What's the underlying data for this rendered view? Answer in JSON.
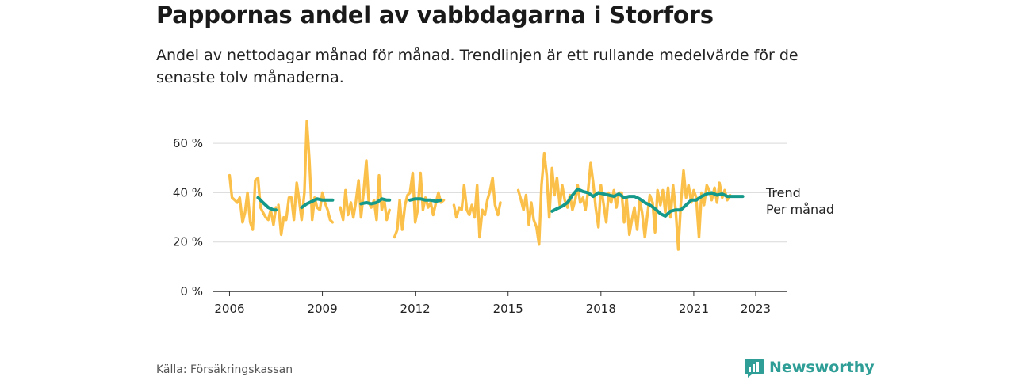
{
  "header": {
    "title": "Pappornas andel av vabbdagarna i Storfors",
    "subtitle": "Andel av nettodagar månad för månad. Trendlinjen är ett rullande medelvärde för de senaste tolv månaderna."
  },
  "footer": {
    "source": "Källa: Försäkringskassan",
    "brand": "Newsworthy",
    "brand_icon": "bar-chart-icon"
  },
  "colors": {
    "monthly": "#fbc04a",
    "trend": "#15998a",
    "grid": "#d9d9d9",
    "axis": "#333333",
    "brand": "#2f9e96"
  },
  "chart_data": {
    "type": "line",
    "x_unit": "year",
    "ylim": [
      0,
      70
    ],
    "y_ticks": [
      0,
      20,
      40,
      60
    ],
    "y_tick_labels": [
      "0 %",
      "20 %",
      "40 %",
      "60 %"
    ],
    "x_ticks": [
      2006,
      2009,
      2012,
      2015,
      2018,
      2021,
      2023
    ],
    "x_tick_labels": [
      "2006",
      "2009",
      "2012",
      "2015",
      "2018",
      "2021",
      "2023"
    ],
    "grid": true,
    "series": [
      {
        "name": "Per månad",
        "values": [
          [
            [
              2006.0,
              47
            ],
            [
              2006.08,
              38
            ],
            [
              2006.17,
              37
            ],
            [
              2006.25,
              36
            ],
            [
              2006.33,
              38
            ],
            [
              2006.42,
              28
            ],
            [
              2006.5,
              32
            ],
            [
              2006.58,
              40
            ],
            [
              2006.67,
              28
            ],
            [
              2006.75,
              25
            ],
            [
              2006.83,
              45
            ],
            [
              2006.92,
              46
            ],
            [
              2007.0,
              34
            ],
            [
              2007.08,
              32
            ],
            [
              2007.17,
              30
            ],
            [
              2007.25,
              29
            ],
            [
              2007.33,
              33
            ],
            [
              2007.42,
              27
            ],
            [
              2007.5,
              34
            ]
          ],
          [
            [
              2007.58,
              35
            ],
            [
              2007.67,
              23
            ],
            [
              2007.75,
              30
            ],
            [
              2007.83,
              29
            ],
            [
              2007.92,
              38
            ],
            [
              2008.0,
              38
            ],
            [
              2008.08,
              29
            ],
            [
              2008.17,
              44
            ],
            [
              2008.25,
              37
            ],
            [
              2008.33,
              29
            ],
            [
              2008.42,
              40
            ],
            [
              2008.5,
              69
            ],
            [
              2008.58,
              53
            ],
            [
              2008.67,
              29
            ],
            [
              2008.75,
              38
            ],
            [
              2008.83,
              34
            ],
            [
              2008.92,
              33
            ],
            [
              2009.0,
              40
            ],
            [
              2009.08,
              36
            ],
            [
              2009.17,
              33
            ],
            [
              2009.25,
              29
            ],
            [
              2009.33,
              28
            ]
          ],
          [
            [
              2009.58,
              34
            ],
            [
              2009.67,
              29
            ],
            [
              2009.75,
              41
            ],
            [
              2009.83,
              31
            ],
            [
              2009.92,
              36
            ],
            [
              2010.0,
              30
            ],
            [
              2010.08,
              36
            ],
            [
              2010.17,
              45
            ],
            [
              2010.25,
              30
            ],
            [
              2010.33,
              40
            ],
            [
              2010.42,
              53
            ],
            [
              2010.5,
              36
            ],
            [
              2010.58,
              34
            ],
            [
              2010.67,
              37
            ],
            [
              2010.75,
              29
            ],
            [
              2010.83,
              47
            ],
            [
              2010.92,
              33
            ],
            [
              2011.0,
              37
            ],
            [
              2011.08,
              29
            ],
            [
              2011.17,
              33
            ]
          ],
          [
            [
              2011.33,
              22
            ],
            [
              2011.42,
              25
            ],
            [
              2011.5,
              37
            ],
            [
              2011.58,
              25
            ],
            [
              2011.67,
              35
            ],
            [
              2011.75,
              39
            ],
            [
              2011.83,
              40
            ],
            [
              2011.92,
              48
            ],
            [
              2012.0,
              28
            ],
            [
              2012.08,
              33
            ],
            [
              2012.17,
              48
            ],
            [
              2012.25,
              33
            ],
            [
              2012.33,
              38
            ],
            [
              2012.42,
              34
            ],
            [
              2012.5,
              36
            ],
            [
              2012.58,
              31
            ],
            [
              2012.67,
              36
            ],
            [
              2012.75,
              40
            ],
            [
              2012.83,
              36
            ],
            [
              2012.92,
              37
            ]
          ],
          [
            [
              2013.25,
              35
            ],
            [
              2013.33,
              30
            ],
            [
              2013.42,
              34
            ],
            [
              2013.5,
              33
            ],
            [
              2013.58,
              43
            ],
            [
              2013.67,
              33
            ],
            [
              2013.75,
              31
            ],
            [
              2013.83,
              35
            ],
            [
              2013.92,
              30
            ],
            [
              2014.0,
              43
            ],
            [
              2014.08,
              22
            ],
            [
              2014.17,
              33
            ],
            [
              2014.25,
              31
            ],
            [
              2014.33,
              37
            ],
            [
              2014.42,
              41
            ],
            [
              2014.5,
              46
            ],
            [
              2014.58,
              35
            ],
            [
              2014.67,
              31
            ],
            [
              2014.75,
              36
            ]
          ],
          [
            [
              2015.33,
              41
            ],
            [
              2015.42,
              37
            ],
            [
              2015.5,
              33
            ],
            [
              2015.58,
              39
            ],
            [
              2015.67,
              27
            ],
            [
              2015.75,
              36
            ],
            [
              2015.83,
              29
            ],
            [
              2015.92,
              26
            ],
            [
              2016.0,
              19
            ],
            [
              2016.08,
              43
            ],
            [
              2016.17,
              56
            ],
            [
              2016.25,
              47
            ],
            [
              2016.33,
              30
            ],
            [
              2016.42,
              50
            ],
            [
              2016.5,
              39
            ],
            [
              2016.58,
              46
            ],
            [
              2016.67,
              35
            ],
            [
              2016.75,
              43
            ],
            [
              2016.83,
              37
            ],
            [
              2016.92,
              34
            ],
            [
              2017.0,
              39
            ],
            [
              2017.08,
              33
            ],
            [
              2017.17,
              37
            ],
            [
              2017.25,
              43
            ],
            [
              2017.33,
              36
            ],
            [
              2017.42,
              38
            ],
            [
              2017.5,
              33
            ],
            [
              2017.58,
              40
            ],
            [
              2017.67,
              52
            ],
            [
              2017.75,
              44
            ],
            [
              2017.83,
              34
            ],
            [
              2017.92,
              26
            ],
            [
              2018.0,
              43
            ],
            [
              2018.08,
              36
            ],
            [
              2018.17,
              28
            ],
            [
              2018.25,
              40
            ],
            [
              2018.33,
              36
            ],
            [
              2018.42,
              41
            ],
            [
              2018.5,
              34
            ],
            [
              2018.58,
              40
            ],
            [
              2018.67,
              40
            ],
            [
              2018.75,
              28
            ],
            [
              2018.83,
              38
            ],
            [
              2018.92,
              23
            ],
            [
              2019.0,
              29
            ],
            [
              2019.08,
              34
            ],
            [
              2019.17,
              25
            ],
            [
              2019.25,
              37
            ],
            [
              2019.33,
              32
            ],
            [
              2019.42,
              22
            ],
            [
              2019.5,
              31
            ],
            [
              2019.58,
              39
            ],
            [
              2019.67,
              36
            ],
            [
              2019.75,
              24
            ],
            [
              2019.83,
              41
            ],
            [
              2019.92,
              35
            ],
            [
              2020.0,
              41
            ],
            [
              2020.08,
              32
            ],
            [
              2020.17,
              42
            ],
            [
              2020.25,
              30
            ],
            [
              2020.33,
              43
            ],
            [
              2020.42,
              32
            ],
            [
              2020.5,
              17
            ],
            [
              2020.58,
              35
            ],
            [
              2020.67,
              49
            ],
            [
              2020.75,
              38
            ],
            [
              2020.83,
              43
            ],
            [
              2020.92,
              36
            ],
            [
              2021.0,
              41
            ],
            [
              2021.08,
              38
            ],
            [
              2021.17,
              22
            ],
            [
              2021.25,
              40
            ],
            [
              2021.33,
              35
            ],
            [
              2021.42,
              43
            ],
            [
              2021.5,
              41
            ],
            [
              2021.58,
              37
            ],
            [
              2021.67,
              42
            ],
            [
              2021.75,
              36
            ],
            [
              2021.83,
              44
            ],
            [
              2021.92,
              38
            ],
            [
              2022.0,
              41
            ],
            [
              2022.08,
              37
            ],
            [
              2022.17,
              39
            ]
          ]
        ]
      },
      {
        "name": "Trend",
        "values": [
          [
            [
              2006.92,
              38
            ],
            [
              2007.08,
              36
            ],
            [
              2007.25,
              34
            ],
            [
              2007.42,
              33
            ],
            [
              2007.5,
              33
            ]
          ],
          [
            [
              2008.33,
              34
            ],
            [
              2008.5,
              35.5
            ],
            [
              2008.67,
              36.5
            ],
            [
              2008.83,
              37.5
            ],
            [
              2009.0,
              37
            ],
            [
              2009.17,
              37
            ],
            [
              2009.33,
              37
            ]
          ],
          [
            [
              2010.25,
              35.5
            ],
            [
              2010.42,
              36
            ],
            [
              2010.58,
              35.5
            ],
            [
              2010.75,
              36
            ],
            [
              2010.92,
              37.5
            ],
            [
              2011.08,
              37
            ],
            [
              2011.17,
              37
            ]
          ],
          [
            [
              2011.83,
              37
            ],
            [
              2012.0,
              37.5
            ],
            [
              2012.17,
              37.5
            ],
            [
              2012.33,
              37
            ],
            [
              2012.5,
              37
            ],
            [
              2012.67,
              36.5
            ],
            [
              2012.83,
              37
            ]
          ],
          [
            [
              2016.42,
              32.5
            ],
            [
              2016.58,
              33.5
            ],
            [
              2016.75,
              34.5
            ],
            [
              2016.92,
              36
            ],
            [
              2017.08,
              39
            ],
            [
              2017.25,
              41.5
            ],
            [
              2017.42,
              40.5
            ],
            [
              2017.58,
              40
            ],
            [
              2017.75,
              38.5
            ],
            [
              2017.92,
              40
            ],
            [
              2018.08,
              39.5
            ],
            [
              2018.25,
              39
            ],
            [
              2018.42,
              38.5
            ],
            [
              2018.58,
              39.5
            ],
            [
              2018.75,
              38
            ],
            [
              2018.92,
              38.5
            ],
            [
              2019.08,
              38.5
            ],
            [
              2019.25,
              37.5
            ],
            [
              2019.42,
              36
            ],
            [
              2019.58,
              35
            ],
            [
              2019.75,
              33.5
            ],
            [
              2019.92,
              31.5
            ],
            [
              2020.08,
              30.5
            ],
            [
              2020.25,
              32.5
            ],
            [
              2020.42,
              33
            ],
            [
              2020.58,
              33
            ],
            [
              2020.75,
              35
            ],
            [
              2020.92,
              37
            ],
            [
              2021.08,
              37
            ],
            [
              2021.25,
              38.5
            ],
            [
              2021.42,
              39.5
            ],
            [
              2021.58,
              40
            ],
            [
              2021.75,
              39
            ],
            [
              2021.92,
              39.5
            ],
            [
              2022.08,
              38.5
            ],
            [
              2022.25,
              38.5
            ],
            [
              2022.42,
              38.5
            ],
            [
              2022.58,
              38.5
            ]
          ]
        ]
      }
    ]
  }
}
